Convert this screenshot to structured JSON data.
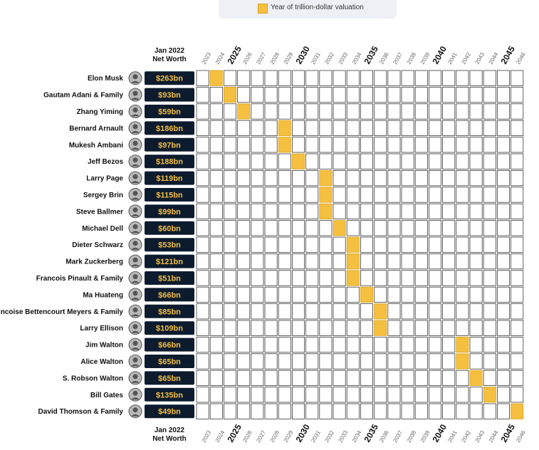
{
  "legend": {
    "label": "Year of trillion-dollar valuation",
    "color": "#f5bf40"
  },
  "column_header": {
    "line1": "Jan 2022",
    "line2": "Net Worth"
  },
  "chart_data": {
    "type": "table",
    "years": [
      2023,
      2024,
      2025,
      2026,
      2027,
      2028,
      2029,
      2030,
      2031,
      2032,
      2033,
      2034,
      2035,
      2036,
      2037,
      2038,
      2039,
      2040,
      2041,
      2042,
      2043,
      2044,
      2045,
      2046
    ],
    "emphasized_years": [
      2025,
      2030,
      2035,
      2040,
      2045
    ],
    "rows": [
      {
        "name": "Elon Musk",
        "net_worth": "$263bn",
        "trillion_year": 2024
      },
      {
        "name": "Gautam Adani & Family",
        "net_worth": "$93bn",
        "trillion_year": 2025
      },
      {
        "name": "Zhang Yiming",
        "net_worth": "$59bn",
        "trillion_year": 2026
      },
      {
        "name": "Bernard Arnault",
        "net_worth": "$186bn",
        "trillion_year": 2029
      },
      {
        "name": "Mukesh Ambani",
        "net_worth": "$97bn",
        "trillion_year": 2029
      },
      {
        "name": "Jeff Bezos",
        "net_worth": "$188bn",
        "trillion_year": 2030
      },
      {
        "name": "Larry Page",
        "net_worth": "$119bn",
        "trillion_year": 2032
      },
      {
        "name": "Sergey Brin",
        "net_worth": "$115bn",
        "trillion_year": 2032
      },
      {
        "name": "Steve Ballmer",
        "net_worth": "$99bn",
        "trillion_year": 2032
      },
      {
        "name": "Michael Dell",
        "net_worth": "$60bn",
        "trillion_year": 2033
      },
      {
        "name": "Dieter Schwarz",
        "net_worth": "$53bn",
        "trillion_year": 2034
      },
      {
        "name": "Mark Zuckerberg",
        "net_worth": "$121bn",
        "trillion_year": 2034
      },
      {
        "name": "Francois Pinault & Family",
        "net_worth": "$51bn",
        "trillion_year": 2034
      },
      {
        "name": "Ma Huateng",
        "net_worth": "$66bn",
        "trillion_year": 2035
      },
      {
        "name": "ncoise Bettencourt Meyers & Family",
        "net_worth": "$85bn",
        "trillion_year": 2036
      },
      {
        "name": "Larry Ellison",
        "net_worth": "$109bn",
        "trillion_year": 2036
      },
      {
        "name": "Jim Walton",
        "net_worth": "$66bn",
        "trillion_year": 2042
      },
      {
        "name": "Alice Walton",
        "net_worth": "$65bn",
        "trillion_year": 2042
      },
      {
        "name": "S. Robson Walton",
        "net_worth": "$65bn",
        "trillion_year": 2043
      },
      {
        "name": "Bill Gates",
        "net_worth": "$135bn",
        "trillion_year": 2044
      },
      {
        "name": "David Thomson & Family",
        "net_worth": "$49bn",
        "trillion_year": 2046
      }
    ]
  }
}
